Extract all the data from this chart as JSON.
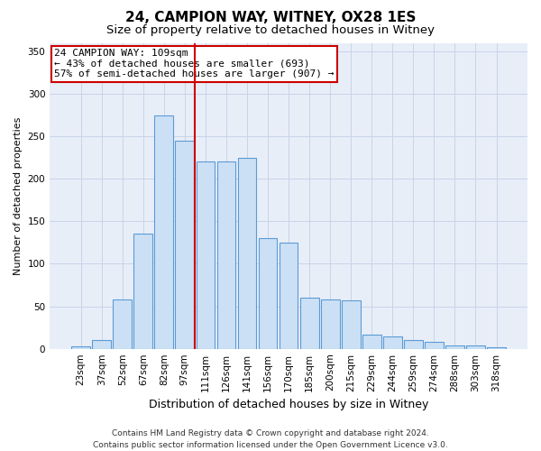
{
  "title_line1": "24, CAMPION WAY, WITNEY, OX28 1ES",
  "title_line2": "Size of property relative to detached houses in Witney",
  "xlabel": "Distribution of detached houses by size in Witney",
  "ylabel": "Number of detached properties",
  "categories": [
    "23sqm",
    "37sqm",
    "52sqm",
    "67sqm",
    "82sqm",
    "97sqm",
    "111sqm",
    "126sqm",
    "141sqm",
    "156sqm",
    "170sqm",
    "185sqm",
    "200sqm",
    "215sqm",
    "229sqm",
    "244sqm",
    "259sqm",
    "274sqm",
    "288sqm",
    "303sqm",
    "318sqm"
  ],
  "values": [
    3,
    10,
    58,
    135,
    275,
    245,
    220,
    220,
    225,
    130,
    125,
    60,
    58,
    57,
    17,
    14,
    10,
    8,
    4,
    4,
    2
  ],
  "bar_color": "#cce0f5",
  "bar_edge_color": "#5b9bd5",
  "grid_color": "#c8d4e8",
  "background_color": "#e8eef8",
  "vline_color": "#cc0000",
  "vline_x_index": 6,
  "annotation_line1": "24 CAMPION WAY: 109sqm",
  "annotation_line2": "← 43% of detached houses are smaller (693)",
  "annotation_line3": "57% of semi-detached houses are larger (907) →",
  "annotation_box_facecolor": "#ffffff",
  "annotation_box_edgecolor": "#cc0000",
  "ylim": [
    0,
    360
  ],
  "yticks": [
    0,
    50,
    100,
    150,
    200,
    250,
    300,
    350
  ],
  "footer_line1": "Contains HM Land Registry data © Crown copyright and database right 2024.",
  "footer_line2": "Contains public sector information licensed under the Open Government Licence v3.0.",
  "title_fontsize": 11,
  "subtitle_fontsize": 9.5,
  "xlabel_fontsize": 9,
  "ylabel_fontsize": 8,
  "tick_fontsize": 7.5,
  "annotation_fontsize": 8,
  "footer_fontsize": 6.5
}
